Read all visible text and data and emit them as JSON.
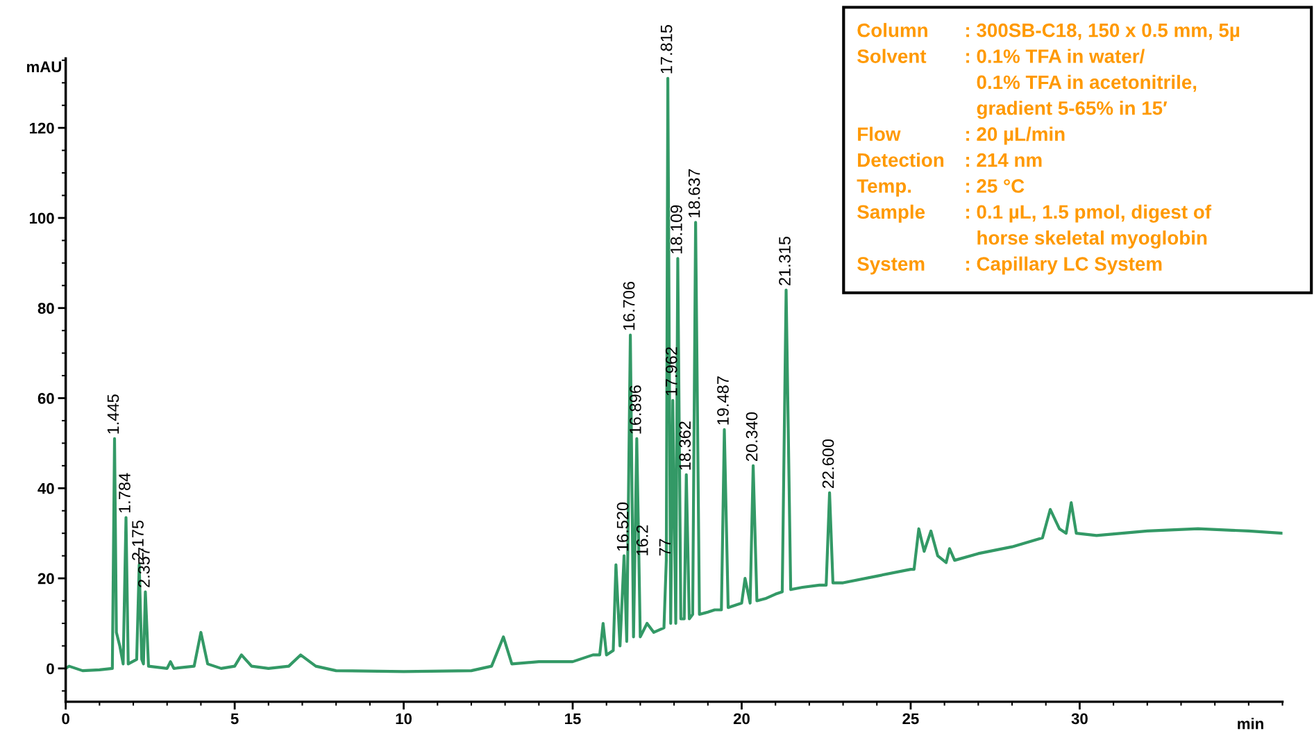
{
  "chart_data": {
    "type": "line",
    "xlabel": "min",
    "ylabel": "mAU",
    "xlim": [
      0,
      36
    ],
    "ylim": [
      -7.4,
      135.4
    ],
    "xticks": [
      0,
      5,
      10,
      15,
      20,
      25,
      30
    ],
    "yticks": [
      0,
      20,
      40,
      60,
      80,
      100,
      120
    ],
    "grid": false,
    "legend": false,
    "series": [
      {
        "color": "#339966",
        "x": [
          0,
          0.1,
          0.5,
          1.0,
          1.38,
          1.445,
          1.5,
          1.6,
          1.7,
          1.784,
          1.85,
          2.1,
          2.175,
          2.25,
          2.3,
          2.357,
          2.45,
          3.0,
          3.1,
          3.2,
          3.8,
          4.0,
          4.2,
          4.6,
          5.0,
          5.2,
          5.5,
          6.0,
          6.6,
          6.95,
          7.4,
          8.0,
          10.0,
          12.0,
          12.6,
          12.95,
          13.2,
          14.0,
          15.0,
          15.6,
          15.8,
          15.9,
          16.0,
          16.2,
          16.28,
          16.4,
          16.52,
          16.6,
          16.706,
          16.8,
          16.896,
          17.0,
          17.2,
          17.4,
          17.7,
          17.77,
          17.815,
          17.9,
          17.962,
          18.05,
          18.109,
          18.2,
          18.3,
          18.362,
          18.45,
          18.55,
          18.637,
          18.75,
          19.0,
          19.2,
          19.4,
          19.487,
          19.6,
          19.8,
          20.0,
          20.1,
          20.25,
          20.34,
          20.45,
          20.7,
          21.0,
          21.2,
          21.315,
          21.45,
          21.8,
          22.3,
          22.5,
          22.6,
          22.7,
          23.0,
          24.0,
          25.0,
          25.1,
          25.24,
          25.4,
          25.6,
          25.8,
          26.05,
          26.15,
          26.3,
          27.0,
          28.0,
          28.9,
          29.13,
          29.4,
          29.6,
          29.75,
          29.9,
          30.5,
          32.0,
          33.5,
          35.0,
          36.0
        ],
        "values": [
          0,
          0.5,
          -0.5,
          -0.3,
          0,
          51,
          8,
          5,
          1,
          33.5,
          1,
          2,
          23,
          2,
          1,
          17,
          0.5,
          0,
          1.5,
          0,
          0.5,
          8,
          1,
          0,
          0.5,
          3,
          0.5,
          0,
          0.5,
          3,
          0.5,
          -0.5,
          -0.7,
          -0.5,
          0.5,
          7,
          1,
          1.5,
          1.5,
          3,
          3,
          10,
          3,
          4,
          23,
          5,
          25,
          6,
          74,
          7,
          51,
          7,
          10,
          8,
          9,
          24,
          131,
          10,
          59.5,
          10,
          91,
          11,
          11,
          43,
          11,
          12,
          99,
          12,
          12.5,
          13,
          13,
          53,
          13.5,
          14,
          14.5,
          20,
          14.5,
          45,
          15,
          15.5,
          16.5,
          17,
          84,
          17.5,
          18,
          18.5,
          18.5,
          39,
          19,
          19,
          20.5,
          22,
          22,
          31,
          26,
          30.5,
          25,
          23.5,
          26.6,
          24,
          25.5,
          27,
          29,
          35.3,
          31,
          30,
          36.8,
          30,
          29.5,
          30.5,
          31,
          30.5,
          30
        ]
      }
    ],
    "annotations": [
      {
        "text": "1.445",
        "x": 1.445,
        "y": 51
      },
      {
        "text": "1.784",
        "x": 1.784,
        "y": 33.5
      },
      {
        "text": "2.175",
        "x": 2.175,
        "y": 23
      },
      {
        "text": "2.357",
        "x": 2.357,
        "y": 17
      },
      {
        "text": "16.520",
        "x": 16.52,
        "y": 25
      },
      {
        "text": "16.706",
        "x": 16.706,
        "y": 74
      },
      {
        "text": "16.896",
        "x": 16.896,
        "y": 51
      },
      {
        "text": "16.2",
        "x": 17.1,
        "y": 24
      },
      {
        "text": "77",
        "x": 17.77,
        "y": 24
      },
      {
        "text": "17.815",
        "x": 17.815,
        "y": 131
      },
      {
        "text": "17.962",
        "x": 17.962,
        "y": 59.5
      },
      {
        "text": "18.109",
        "x": 18.109,
        "y": 91
      },
      {
        "text": "18.362",
        "x": 18.362,
        "y": 43
      },
      {
        "text": "18.637",
        "x": 18.637,
        "y": 99
      },
      {
        "text": "19.487",
        "x": 19.487,
        "y": 53
      },
      {
        "text": "20.340",
        "x": 20.34,
        "y": 45
      },
      {
        "text": "21.315",
        "x": 21.315,
        "y": 84
      },
      {
        "text": "22.600",
        "x": 22.6,
        "y": 39
      },
      "Column : 300SB-C18, 150 x 0.5 mm, 5µ",
      "Solvent : 0.1% TFA in water/\n0.1% TFA in acetonitrile,\ngradient 5-65% in 15′",
      "Flow : 20 µL/min",
      "Detection : 214 nm",
      "Temp. : 25 °C",
      "Sample : 0.1 µL, 1.5 pmol, digest of\nhorse skeletal myoglobin",
      "System : Capillary LC System"
    ]
  }
}
